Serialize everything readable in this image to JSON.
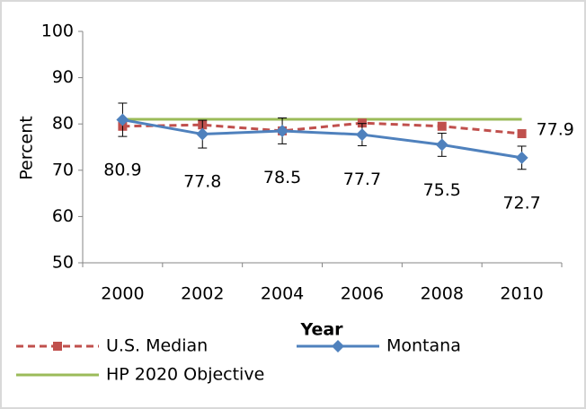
{
  "chart_data": {
    "type": "line",
    "x_label": "Year",
    "y_label": "Percent",
    "categories": [
      "2000",
      "2002",
      "2004",
      "2006",
      "2008",
      "2010"
    ],
    "series": [
      {
        "name": "U.S. Median",
        "color": "#c0504d",
        "dash": true,
        "marker": "square",
        "values": [
          79.5,
          79.8,
          78.5,
          80.2,
          79.5,
          77.9
        ],
        "labeled": [
          5
        ]
      },
      {
        "name": "Montana",
        "color": "#4f81bd",
        "dash": false,
        "marker": "diamond",
        "values": [
          80.9,
          77.8,
          78.5,
          77.7,
          75.5,
          72.7
        ],
        "errors": [
          3.6,
          3.0,
          2.8,
          2.4,
          2.5,
          2.5
        ],
        "labeled": [
          0,
          1,
          2,
          3,
          4,
          5
        ]
      },
      {
        "name": "HP 2020 Objective",
        "color": "#9bbb59",
        "dash": false,
        "marker": "none",
        "values": [
          81,
          81,
          81,
          81,
          81,
          81
        ]
      }
    ],
    "ylim": [
      50,
      100
    ],
    "yticks": [
      50,
      60,
      70,
      80,
      90,
      100
    ]
  }
}
